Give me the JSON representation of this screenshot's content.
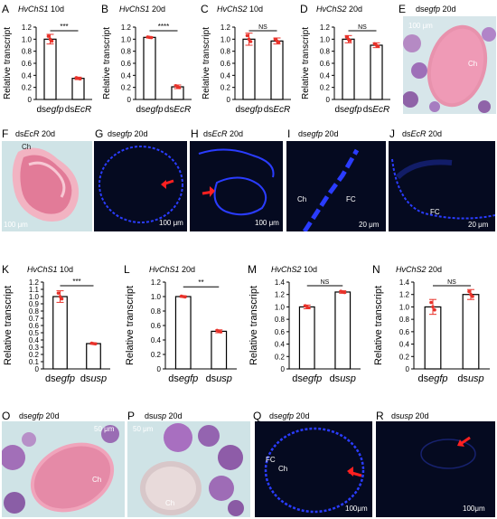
{
  "labels": {
    "A": "A",
    "B": "B",
    "C": "C",
    "D": "D",
    "E": "E",
    "F": "F",
    "G": "G",
    "H": "H",
    "I": "I",
    "J": "J",
    "K": "K",
    "L": "L",
    "M": "M",
    "N": "N",
    "O": "O",
    "P": "P",
    "Q": "Q",
    "R": "R"
  },
  "titles": {
    "A": {
      "gene": "HvChS1",
      "time": " 10d"
    },
    "B": {
      "gene": "HvChS1",
      "time": " 20d"
    },
    "C": {
      "gene": "HvChS2",
      "time": " 10d"
    },
    "D": {
      "gene": "HvChS2",
      "time": " 20d"
    },
    "K": {
      "gene": "HvChS1",
      "time": " 10d"
    },
    "L": {
      "gene": "HvChS1",
      "time": " 20d"
    },
    "M": {
      "gene": "HvChS2",
      "time": " 10d"
    },
    "N": {
      "gene": "HvChS2",
      "time": " 20d"
    },
    "E": {
      "pre": "ds",
      "gene": "egfp",
      "time": " 20d"
    },
    "F": {
      "pre": "ds",
      "gene": "EcR",
      "time": " 20d"
    },
    "G": {
      "pre": "ds",
      "gene": "egfp",
      "time": " 20d"
    },
    "H": {
      "pre": "ds",
      "gene": "EcR",
      "time": " 20d"
    },
    "I": {
      "pre": "ds",
      "gene": "egfp",
      "time": " 20d"
    },
    "J": {
      "pre": "ds",
      "gene": "EcR",
      "time": " 20d"
    },
    "O": {
      "pre": "ds",
      "gene": "egfp",
      "time": " 20d"
    },
    "P": {
      "pre": "ds",
      "gene": "usp",
      "time": " 20d"
    },
    "Q": {
      "pre": "ds",
      "gene": "egfp",
      "time": " 20d"
    },
    "R": {
      "pre": "ds",
      "gene": "usp",
      "time": " 20d"
    }
  },
  "annotations": {
    "ch": "Ch",
    "fc": "FC",
    "E_scale": "100 μm",
    "F_scale": "100 μm",
    "G_scale": "100 μm",
    "H_scale": "100 μm",
    "I_scale": "20 μm",
    "J_scale": "20 μm",
    "O_scale": "50 μm",
    "P_scale": "50 μm",
    "Q_scale": "100μm",
    "R_scale": "100μm"
  },
  "colors": {
    "bar_fill": "#ffffff",
    "bar_stroke": "#000000",
    "points": "#e8322a",
    "he_bg": "#cfe3e6",
    "he_pink": "#e07a96",
    "fluor_bg": "#050a20",
    "fluor_blue": "#2a3cff",
    "arrow": "#ff2020"
  },
  "chart_data": [
    {
      "panel": "A",
      "type": "bar",
      "ylabel": "Relative transcript",
      "categories": [
        "dsegfp",
        "dsEcR"
      ],
      "values": [
        1.0,
        0.35
      ],
      "errors": [
        0.08,
        0.02
      ],
      "ylim": [
        0,
        1.2
      ],
      "yticks": [
        "0",
        "0.2",
        "0.4",
        "0.6",
        "0.8",
        "1.0",
        "1.2"
      ],
      "sig": "***"
    },
    {
      "panel": "B",
      "type": "bar",
      "ylabel": "Relative transcript",
      "categories": [
        "dsegfp",
        "dsEcR"
      ],
      "values": [
        1.03,
        0.21
      ],
      "errors": [
        0.01,
        0.03
      ],
      "ylim": [
        0,
        1.2
      ],
      "yticks": [
        "0",
        "0.2",
        "0.4",
        "0.6",
        "0.8",
        "1.0",
        "1.2"
      ],
      "sig": "****"
    },
    {
      "panel": "C",
      "type": "bar",
      "ylabel": "Relative transcript",
      "categories": [
        "dsegfp",
        "dsEcR"
      ],
      "values": [
        1.0,
        0.97
      ],
      "errors": [
        0.1,
        0.05
      ],
      "ylim": [
        0,
        1.2
      ],
      "yticks": [
        "0",
        "0.2",
        "0.4",
        "0.6",
        "0.8",
        "1.0",
        "1.2"
      ],
      "sig": "NS"
    },
    {
      "panel": "D",
      "type": "bar",
      "ylabel": "Relative transcript",
      "categories": [
        "dsegfp",
        "dsEcR"
      ],
      "values": [
        1.0,
        0.9
      ],
      "errors": [
        0.06,
        0.04
      ],
      "ylim": [
        0,
        1.2
      ],
      "yticks": [
        "0",
        "0.2",
        "0.4",
        "0.6",
        "0.8",
        "1.0",
        "1.2"
      ],
      "sig": "NS"
    },
    {
      "panel": "K",
      "type": "bar",
      "ylabel": "Relative transcript",
      "categories": [
        "dsegfp",
        "dsusp"
      ],
      "values": [
        1.0,
        0.35
      ],
      "errors": [
        0.08,
        0.01
      ],
      "ylim": [
        0,
        1.2
      ],
      "yticks": [
        "0",
        "0.1",
        "0.2",
        "0.3",
        "0.4",
        "0.5",
        "0.6",
        "0.7",
        "0.8",
        "0.9",
        "1.0",
        "1.1",
        "1.2"
      ],
      "sig": "***"
    },
    {
      "panel": "L",
      "type": "bar",
      "ylabel": "Relative transcript",
      "categories": [
        "dsegfp",
        "dsusp"
      ],
      "values": [
        1.0,
        0.52
      ],
      "errors": [
        0.01,
        0.02
      ],
      "ylim": [
        0,
        1.2
      ],
      "yticks": [
        "0",
        "0.2",
        "0.4",
        "0.6",
        "0.8",
        "1.0",
        "1.2"
      ],
      "sig": "**"
    },
    {
      "panel": "M",
      "type": "bar",
      "ylabel": "Relative transcript",
      "categories": [
        "dsegfp",
        "dsusp"
      ],
      "values": [
        1.0,
        1.24
      ],
      "errors": [
        0.03,
        0.02
      ],
      "ylim": [
        0,
        1.4
      ],
      "yticks": [
        "0",
        "0.2",
        "0.4",
        "0.6",
        "0.8",
        "1.0",
        "1.2",
        "1.4"
      ],
      "sig": "NS"
    },
    {
      "panel": "N",
      "type": "bar",
      "ylabel": "Relative transcript",
      "categories": [
        "dsegfp",
        "dsusp"
      ],
      "values": [
        1.0,
        1.2
      ],
      "errors": [
        0.12,
        0.08
      ],
      "ylim": [
        0,
        1.4
      ],
      "yticks": [
        "0",
        "0.2",
        "0.4",
        "0.6",
        "0.8",
        "1.0",
        "1.2",
        "1.4"
      ],
      "sig": "NS"
    }
  ]
}
